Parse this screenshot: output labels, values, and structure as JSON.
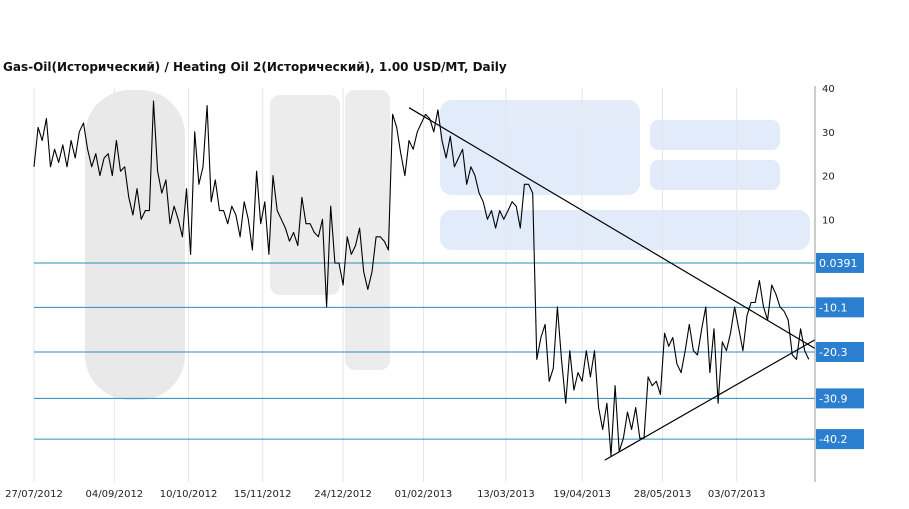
{
  "chart_data": {
    "type": "line",
    "title": "Gas-Oil(Исторический) / Heating Oil 2(Исторический), 1.00 USD/MT, Daily",
    "ylim": [
      -50,
      40
    ],
    "y_ticks": [
      10,
      20,
      30,
      40
    ],
    "x_ticks": [
      "27/07/2012",
      "04/09/2012",
      "10/10/2012",
      "15/11/2012",
      "24/12/2012",
      "01/02/2013",
      "13/03/2013",
      "19/04/2013",
      "28/05/2013",
      "03/07/2013"
    ],
    "x_range": [
      "2012-07-27",
      "2013-08-10"
    ],
    "grid": "vertical",
    "horizontal_levels": [
      {
        "value": 0.0391,
        "label": "0.0391"
      },
      {
        "value": -10.1,
        "label": "-10.1"
      },
      {
        "value": -20.3,
        "label": "-20.3"
      },
      {
        "value": -30.9,
        "label": "-30.9"
      },
      {
        "value": -40.2,
        "label": "-40.2"
      }
    ],
    "trendlines": [
      {
        "from": [
          "2013-01-25",
          35.5
        ],
        "to": [
          "2013-08-10",
          -19.5
        ]
      },
      {
        "from": [
          "2013-04-30",
          -45
        ],
        "to": [
          "2013-08-10",
          -17.5
        ]
      }
    ],
    "series": [
      {
        "x": [
          "2012-07-27",
          "2012-07-29",
          "2012-07-31",
          "2012-08-02",
          "2012-08-04",
          "2012-08-06",
          "2012-08-08",
          "2012-08-10",
          "2012-08-12",
          "2012-08-14",
          "2012-08-16",
          "2012-08-18",
          "2012-08-20",
          "2012-08-22",
          "2012-08-24",
          "2012-08-26",
          "2012-08-28",
          "2012-08-30",
          "2012-09-01",
          "2012-09-03",
          "2012-09-05",
          "2012-09-07",
          "2012-09-09",
          "2012-09-11",
          "2012-09-13",
          "2012-09-15",
          "2012-09-17",
          "2012-09-19",
          "2012-09-21",
          "2012-09-23",
          "2012-09-25",
          "2012-09-27",
          "2012-09-29",
          "2012-10-01",
          "2012-10-03",
          "2012-10-05",
          "2012-10-07",
          "2012-10-09",
          "2012-10-11",
          "2012-10-13",
          "2012-10-15",
          "2012-10-17",
          "2012-10-19",
          "2012-10-21",
          "2012-10-23",
          "2012-10-25",
          "2012-10-27",
          "2012-10-29",
          "2012-10-31",
          "2012-11-02",
          "2012-11-04",
          "2012-11-06",
          "2012-11-08",
          "2012-11-10",
          "2012-11-12",
          "2012-11-14",
          "2012-11-16",
          "2012-11-18",
          "2012-11-20",
          "2012-11-22",
          "2012-11-24",
          "2012-11-26",
          "2012-11-28",
          "2012-11-30",
          "2012-12-02",
          "2012-12-04",
          "2012-12-06",
          "2012-12-08",
          "2012-12-10",
          "2012-12-12",
          "2012-12-14",
          "2012-12-16",
          "2012-12-18",
          "2012-12-20",
          "2012-12-22",
          "2012-12-24",
          "2012-12-26",
          "2012-12-28",
          "2012-12-30",
          "2013-01-01",
          "2013-01-03",
          "2013-01-05",
          "2013-01-07",
          "2013-01-09",
          "2013-01-11",
          "2013-01-13",
          "2013-01-15",
          "2013-01-17",
          "2013-01-19",
          "2013-01-21",
          "2013-01-23",
          "2013-01-25",
          "2013-01-27",
          "2013-01-29",
          "2013-01-31",
          "2013-02-02",
          "2013-02-04",
          "2013-02-06",
          "2013-02-08",
          "2013-02-10",
          "2013-02-12",
          "2013-02-14",
          "2013-02-16",
          "2013-02-18",
          "2013-02-20",
          "2013-02-22",
          "2013-02-24",
          "2013-02-26",
          "2013-02-28",
          "2013-03-02",
          "2013-03-04",
          "2013-03-06",
          "2013-03-08",
          "2013-03-10",
          "2013-03-12",
          "2013-03-14",
          "2013-03-16",
          "2013-03-18",
          "2013-03-20",
          "2013-03-22",
          "2013-03-24",
          "2013-03-26",
          "2013-03-28",
          "2013-03-30",
          "2013-04-01",
          "2013-04-03",
          "2013-04-05",
          "2013-04-07",
          "2013-04-09",
          "2013-04-11",
          "2013-04-13",
          "2013-04-15",
          "2013-04-17",
          "2013-04-19",
          "2013-04-21",
          "2013-04-23",
          "2013-04-25",
          "2013-04-27",
          "2013-04-29",
          "2013-05-01",
          "2013-05-03",
          "2013-05-05",
          "2013-05-07",
          "2013-05-09",
          "2013-05-11",
          "2013-05-13",
          "2013-05-15",
          "2013-05-17",
          "2013-05-19",
          "2013-05-21",
          "2013-05-23",
          "2013-05-25",
          "2013-05-27",
          "2013-05-29",
          "2013-05-31",
          "2013-06-02",
          "2013-06-04",
          "2013-06-06",
          "2013-06-08",
          "2013-06-10",
          "2013-06-12",
          "2013-06-14",
          "2013-06-16",
          "2013-06-18",
          "2013-06-20",
          "2013-06-22",
          "2013-06-24",
          "2013-06-26",
          "2013-06-28",
          "2013-06-30",
          "2013-07-02",
          "2013-07-04",
          "2013-07-06",
          "2013-07-08",
          "2013-07-10",
          "2013-07-12",
          "2013-07-14",
          "2013-07-16",
          "2013-07-18",
          "2013-07-20",
          "2013-07-22",
          "2013-07-24",
          "2013-07-26",
          "2013-07-28",
          "2013-07-30",
          "2013-08-01",
          "2013-08-03",
          "2013-08-05",
          "2013-08-07"
        ],
        "values": [
          22,
          31,
          28,
          33,
          22,
          26,
          23,
          27,
          22,
          28,
          24,
          30,
          32,
          26,
          22,
          25,
          20,
          24,
          25,
          20,
          28,
          21,
          22,
          15,
          11,
          17,
          10,
          12,
          12,
          37,
          21,
          16,
          19,
          9,
          13,
          10,
          6,
          17,
          2,
          30,
          18,
          22,
          36,
          14,
          19,
          12,
          12,
          9,
          13,
          11,
          6,
          14,
          10,
          3,
          21,
          9,
          14,
          2,
          20,
          12,
          10,
          8,
          5,
          7,
          4,
          15,
          9,
          9,
          7,
          6,
          10,
          -10,
          13,
          0,
          0,
          -5,
          6,
          2,
          4,
          8,
          -2,
          -6,
          -2,
          6,
          6,
          5,
          3,
          34,
          31,
          25,
          20,
          28,
          26,
          30,
          32,
          34,
          33,
          30,
          35,
          28,
          24,
          29,
          22,
          24,
          26,
          18,
          22,
          20,
          16,
          14,
          10,
          12,
          8,
          12,
          10,
          12,
          14,
          13,
          8,
          18,
          18,
          16,
          -22,
          -17,
          -14,
          -27,
          -24,
          -10,
          -22,
          -32,
          -20,
          -29,
          -25,
          -27,
          -20,
          -26,
          -20,
          -33,
          -38,
          -32,
          -44,
          -28,
          -43,
          -40,
          -34,
          -38,
          -33,
          -40,
          -40,
          -26,
          -28,
          -27,
          -30,
          -16,
          -19,
          -17,
          -23,
          -25,
          -20,
          -14,
          -20,
          -21,
          -15,
          -10,
          -25,
          -15,
          -32,
          -18,
          -20,
          -16,
          -10,
          -15,
          -20,
          -12,
          -9,
          -9,
          -4,
          -10,
          -13,
          -5,
          -7,
          -10,
          -11,
          -13,
          -21,
          -22,
          -15,
          -20,
          -22
        ]
      }
    ],
    "colors": {
      "line": "#000000",
      "level_line": "#2a8cc0",
      "label_bg": "#2b7fce",
      "trend": "#000000",
      "grid": "#e6e6e6"
    }
  }
}
